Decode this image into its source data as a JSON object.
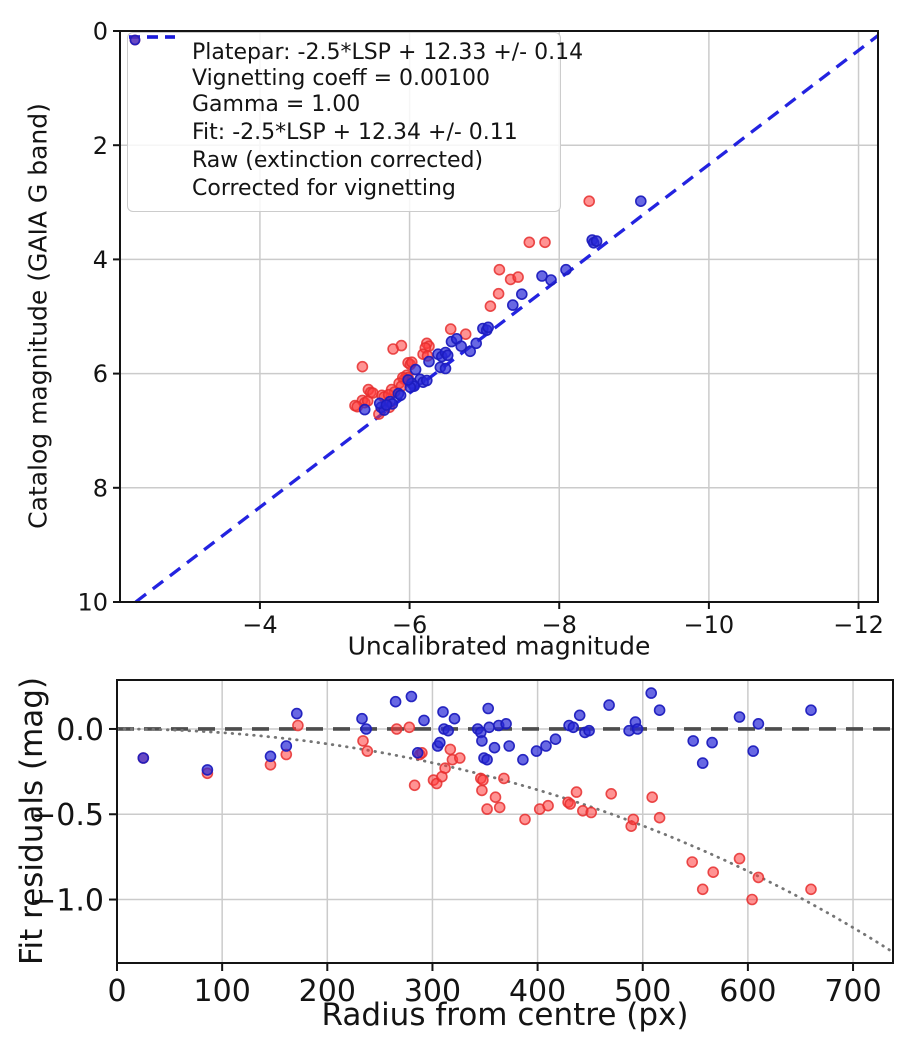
{
  "colors": {
    "background": "#ffffff",
    "grid": "#cbcbcb",
    "spine": "#141414",
    "text": "#141414",
    "raw_fill": "#ff3b3b",
    "raw_edge": "#e62e2e",
    "corrected_fill": "#2828d7",
    "corrected_edge": "#1c1cbe",
    "fit_line": "#1010dd",
    "platepar_line": "#4d4d4d",
    "model_curve": "#757575",
    "legend_border": "#cccccc"
  },
  "legend": {
    "platepar_label": "Platepar: -2.5*LSP + 12.33 +/- 0.14",
    "vignetting_label": "Vignetting coeff = 0.00100",
    "gamma_label": "Gamma = 1.00",
    "fit_label": "Fit: -2.5*LSP + 12.34 +/- 0.11",
    "raw_label": "Raw (extinction corrected)",
    "corrected_label": "Corrected for vignetting"
  },
  "chart_data": [
    {
      "type": "scatter",
      "title": "",
      "xlabel": "Uncalibrated magnitude",
      "ylabel": "Catalog magnitude (GAIA G band)",
      "xlim": [
        -2.13,
        -12.26
      ],
      "ylim": [
        0,
        10
      ],
      "axes_inverted": "x decreases rightward, y increases downward",
      "grid": true,
      "legend_position": "upper left",
      "xtick_values": [
        -4,
        -6,
        -8,
        -10,
        -12
      ],
      "xtick_labels": [
        "−4",
        "−6",
        "−8",
        "−10",
        "−12"
      ],
      "ytick_values": [
        0,
        2,
        4,
        6,
        8,
        10
      ],
      "ytick_labels": [
        "0",
        "2",
        "4",
        "6",
        "8",
        "10"
      ],
      "fit_line": {
        "slope": 1,
        "intercept": 12.34,
        "style": "dashed",
        "color_key": "fit_line"
      },
      "series": [
        {
          "name": "Raw (extinction corrected)",
          "marker": "circle",
          "color_key": "raw",
          "points": [
            [
              -8.4,
              2.98
            ],
            [
              -7.6,
              3.7
            ],
            [
              -7.81,
              3.7
            ],
            [
              -7.2,
              4.18
            ],
            [
              -7.35,
              4.35
            ],
            [
              -7.45,
              4.31
            ],
            [
              -7.19,
              4.6
            ],
            [
              -7.08,
              4.82
            ],
            [
              -6.55,
              5.22
            ],
            [
              -6.75,
              5.31
            ],
            [
              -6.23,
              5.47
            ],
            [
              -6.26,
              5.52
            ],
            [
              -6.21,
              5.55
            ],
            [
              -6.18,
              5.66
            ],
            [
              -6.24,
              5.69
            ],
            [
              -5.89,
              5.51
            ],
            [
              -5.78,
              5.57
            ],
            [
              -5.37,
              5.88
            ],
            [
              -5.98,
              5.81
            ],
            [
              -6.01,
              5.84
            ],
            [
              -6.03,
              5.8
            ],
            [
              -5.96,
              6.03
            ],
            [
              -5.98,
              6.07
            ],
            [
              -5.93,
              6.1
            ],
            [
              -5.91,
              6.07
            ],
            [
              -5.86,
              6.17
            ],
            [
              -5.89,
              6.22
            ],
            [
              -5.76,
              6.28
            ],
            [
              -5.8,
              6.32
            ],
            [
              -5.45,
              6.28
            ],
            [
              -5.48,
              6.33
            ],
            [
              -5.51,
              6.34
            ],
            [
              -5.37,
              6.47
            ],
            [
              -5.4,
              6.51
            ],
            [
              -5.44,
              6.48
            ],
            [
              -5.27,
              6.56
            ],
            [
              -5.3,
              6.58
            ],
            [
              -5.63,
              6.38
            ],
            [
              -5.66,
              6.41
            ],
            [
              -5.7,
              6.55
            ],
            [
              -5.73,
              6.59
            ],
            [
              -5.59,
              6.71
            ],
            [
              -5.72,
              6.37
            ]
          ]
        },
        {
          "name": "Corrected for vignetting",
          "marker": "circle",
          "color_key": "corrected",
          "points": [
            [
              -9.09,
              2.98
            ],
            [
              -8.44,
              3.66
            ],
            [
              -8.46,
              3.71
            ],
            [
              -8.5,
              3.68
            ],
            [
              -7.77,
              4.29
            ],
            [
              -7.89,
              4.36
            ],
            [
              -8.09,
              4.18
            ],
            [
              -7.5,
              4.61
            ],
            [
              -7.38,
              4.8
            ],
            [
              -6.98,
              5.21
            ],
            [
              -7.03,
              5.24
            ],
            [
              -7.05,
              5.19
            ],
            [
              -6.89,
              5.47
            ],
            [
              -6.56,
              5.44
            ],
            [
              -6.63,
              5.39
            ],
            [
              -6.38,
              5.66
            ],
            [
              -6.43,
              5.7
            ],
            [
              -6.48,
              5.63
            ],
            [
              -6.26,
              5.79
            ],
            [
              -6.08,
              5.93
            ],
            [
              -6.14,
              6.1
            ],
            [
              -6.18,
              6.15
            ],
            [
              -6.23,
              6.12
            ],
            [
              -6.03,
              6.17
            ],
            [
              -6.06,
              6.22
            ],
            [
              -6.01,
              6.24
            ],
            [
              -5.98,
              6.11
            ],
            [
              -5.85,
              6.35
            ],
            [
              -5.88,
              6.38
            ],
            [
              -5.74,
              6.49
            ],
            [
              -5.77,
              6.53
            ],
            [
              -5.62,
              6.59
            ],
            [
              -5.66,
              6.64
            ],
            [
              -5.4,
              6.63
            ],
            [
              -6.51,
              5.68
            ],
            [
              -6.69,
              5.52
            ],
            [
              -6.81,
              5.61
            ],
            [
              -6.41,
              5.89
            ],
            [
              -6.48,
              5.91
            ],
            [
              -5.6,
              6.52
            ],
            [
              -5.69,
              6.55
            ]
          ]
        }
      ]
    },
    {
      "type": "scatter",
      "title": "",
      "xlabel": "Radius from centre (px)",
      "ylabel": "Fit residuals (mag)",
      "xlim": [
        0,
        738
      ],
      "ylim": [
        0.287,
        -1.372
      ],
      "grid": true,
      "xtick_values": [
        0,
        100,
        200,
        300,
        400,
        500,
        600,
        700
      ],
      "xtick_labels": [
        "0",
        "100",
        "200",
        "300",
        "400",
        "500",
        "600",
        "700"
      ],
      "ytick_values": [
        0.0,
        -0.5,
        -1.0
      ],
      "ytick_labels": [
        "0.0",
        "−0.5",
        "−1.0"
      ],
      "zero_line": {
        "y": 0.0,
        "style": "dashed",
        "color_key": "platepar_line"
      },
      "vignetting_model": {
        "coeff": 0.001,
        "formula": "2.5*log10(cos^4(coeff*r))",
        "style": "dotted",
        "color_key": "model_curve"
      },
      "series": [
        {
          "name": "Raw (extinction corrected)",
          "marker": "circle",
          "color_key": "raw",
          "points": [
            [
              25,
              -0.17
            ],
            [
              86,
              -0.26
            ],
            [
              146,
              -0.21
            ],
            [
              161,
              -0.15
            ],
            [
              172,
              0.02
            ],
            [
              234,
              -0.07
            ],
            [
              238,
              -0.13
            ],
            [
              266,
              0.0
            ],
            [
              278,
              0.01
            ],
            [
              283,
              -0.33
            ],
            [
              288,
              -0.15
            ],
            [
              290,
              -0.14
            ],
            [
              301,
              -0.3
            ],
            [
              304,
              -0.32
            ],
            [
              309,
              -0.28
            ],
            [
              312,
              -0.23
            ],
            [
              317,
              -0.12
            ],
            [
              319,
              -0.18
            ],
            [
              326,
              -0.17
            ],
            [
              346,
              -0.29
            ],
            [
              348,
              -0.3
            ],
            [
              347,
              -0.36
            ],
            [
              352,
              -0.47
            ],
            [
              360,
              -0.4
            ],
            [
              364,
              -0.46
            ],
            [
              368,
              -0.29
            ],
            [
              388,
              -0.53
            ],
            [
              402,
              -0.47
            ],
            [
              410,
              -0.45
            ],
            [
              429,
              -0.43
            ],
            [
              431,
              -0.44
            ],
            [
              437,
              -0.37
            ],
            [
              443,
              -0.48
            ],
            [
              451,
              -0.49
            ],
            [
              470,
              -0.38
            ],
            [
              489,
              -0.57
            ],
            [
              491,
              -0.53
            ],
            [
              509,
              -0.4
            ],
            [
              516,
              -0.52
            ],
            [
              547,
              -0.78
            ],
            [
              557,
              -0.94
            ],
            [
              567,
              -0.84
            ],
            [
              592,
              -0.76
            ],
            [
              604,
              -1.0
            ],
            [
              610,
              -0.87
            ],
            [
              660,
              -0.94
            ]
          ]
        },
        {
          "name": "Corrected for vignetting",
          "marker": "circle",
          "color_key": "corrected",
          "points": [
            [
              25,
              -0.17
            ],
            [
              86,
              -0.24
            ],
            [
              146,
              -0.16
            ],
            [
              161,
              -0.1
            ],
            [
              171,
              0.09
            ],
            [
              233,
              0.06
            ],
            [
              237,
              0.0
            ],
            [
              265,
              0.16
            ],
            [
              280,
              0.19
            ],
            [
              286,
              -0.14
            ],
            [
              292,
              0.05
            ],
            [
              305,
              -0.1
            ],
            [
              307,
              -0.08
            ],
            [
              310,
              0.1
            ],
            [
              311,
              0.0
            ],
            [
              315,
              -0.01
            ],
            [
              321,
              0.06
            ],
            [
              343,
              0.0
            ],
            [
              346,
              -0.02
            ],
            [
              347,
              -0.07
            ],
            [
              349,
              -0.17
            ],
            [
              352,
              -0.18
            ],
            [
              353,
              0.12
            ],
            [
              354,
              0.01
            ],
            [
              359,
              -0.11
            ],
            [
              363,
              0.02
            ],
            [
              370,
              0.03
            ],
            [
              373,
              -0.1
            ],
            [
              386,
              -0.18
            ],
            [
              399,
              -0.13
            ],
            [
              408,
              -0.1
            ],
            [
              417,
              -0.06
            ],
            [
              430,
              0.02
            ],
            [
              434,
              0.01
            ],
            [
              440,
              0.08
            ],
            [
              445,
              -0.02
            ],
            [
              449,
              -0.01
            ],
            [
              468,
              0.14
            ],
            [
              487,
              -0.01
            ],
            [
              493,
              0.04
            ],
            [
              495,
              0.0
            ],
            [
              508,
              0.21
            ],
            [
              516,
              0.11
            ],
            [
              548,
              -0.07
            ],
            [
              557,
              -0.2
            ],
            [
              566,
              -0.08
            ],
            [
              592,
              0.07
            ],
            [
              605,
              -0.13
            ],
            [
              610,
              0.03
            ],
            [
              660,
              0.11
            ]
          ]
        }
      ]
    }
  ]
}
